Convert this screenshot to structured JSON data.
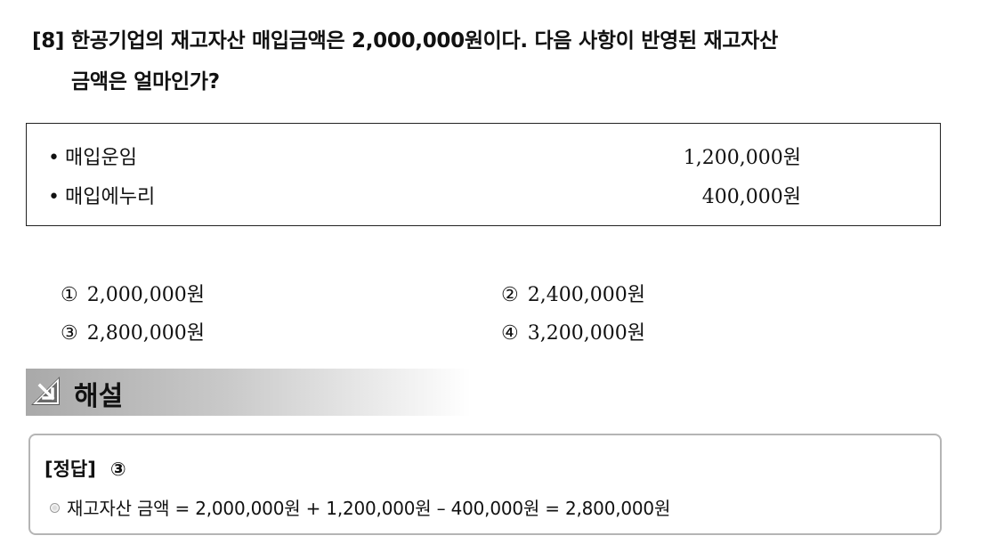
{
  "question": {
    "number": "[8]",
    "line1": "한공기업의 재고자산 매입금액은 2,000,000원이다. 다음 사항이 반영된 재고자산",
    "line2": "금액은 얼마인가?"
  },
  "items": [
    {
      "bullet": "•",
      "label": "매입운임",
      "amount": "1,200,000원"
    },
    {
      "bullet": "•",
      "label": "매입에누리",
      "amount": "400,000원"
    }
  ],
  "options": [
    {
      "mark": "①",
      "value": "2,000,000원"
    },
    {
      "mark": "②",
      "value": "2,400,000원"
    },
    {
      "mark": "③",
      "value": "2,800,000원"
    },
    {
      "mark": "④",
      "value": "3,200,000원"
    }
  ],
  "solution": {
    "title": "해설",
    "answer_label": "[정답]",
    "answer_value": "③",
    "explanation": "재고자산 금액 = 2,000,000원 + 1,200,000원 – 400,000원 = 2,800,000원",
    "icon": "arrow-down-right-icon"
  }
}
